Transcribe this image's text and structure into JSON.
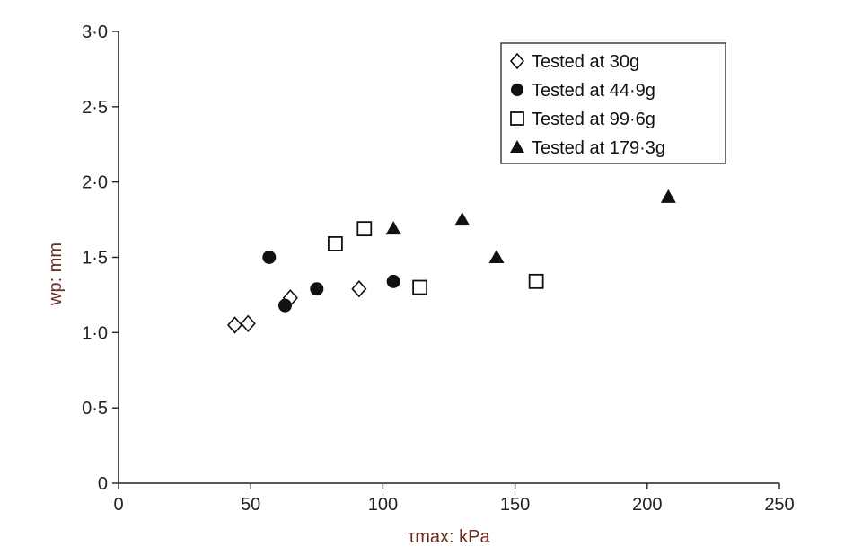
{
  "chart_data": {
    "type": "scatter",
    "title": "",
    "xlabel": "τmax: kPa",
    "ylabel": "wp: mm",
    "xlim": [
      0,
      250
    ],
    "ylim": [
      0,
      3.0
    ],
    "x_ticks": [
      "0",
      "50",
      "100",
      "150",
      "200",
      "250"
    ],
    "y_ticks": [
      "0",
      "0·5",
      "1·0",
      "1·5",
      "2·0",
      "2·5",
      "3·0"
    ],
    "grid": false,
    "legend_position": "top-right",
    "series": [
      {
        "name": "Tested at 30g",
        "marker": "diamond-open",
        "color": "#111111",
        "points": [
          [
            44,
            1.05
          ],
          [
            49,
            1.06
          ],
          [
            65,
            1.23
          ],
          [
            91,
            1.29
          ]
        ]
      },
      {
        "name": "Tested at 44·9g",
        "marker": "circle-filled",
        "color": "#111111",
        "points": [
          [
            57,
            1.5
          ],
          [
            63,
            1.18
          ],
          [
            75,
            1.29
          ],
          [
            104,
            1.34
          ]
        ]
      },
      {
        "name": "Tested at 99·6g",
        "marker": "square-open",
        "color": "#111111",
        "points": [
          [
            82,
            1.59
          ],
          [
            93,
            1.69
          ],
          [
            114,
            1.3
          ],
          [
            158,
            1.34
          ]
        ]
      },
      {
        "name": "Tested at 179·3g",
        "marker": "triangle-filled",
        "color": "#111111",
        "points": [
          [
            104,
            1.69
          ],
          [
            130,
            1.75
          ],
          [
            143,
            1.5
          ],
          [
            208,
            1.9
          ]
        ]
      }
    ]
  }
}
